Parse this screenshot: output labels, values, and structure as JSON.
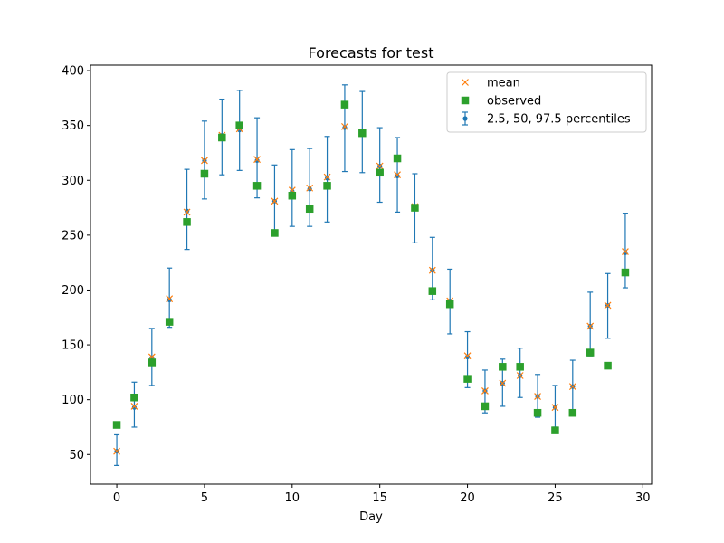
{
  "chart_data": {
    "type": "scatter",
    "title": "Forecasts for test",
    "xlabel": "Day",
    "ylabel": "",
    "xlim": [
      -1.5,
      30.5
    ],
    "ylim": [
      23,
      405
    ],
    "xticks": [
      0,
      5,
      10,
      15,
      20,
      25,
      30
    ],
    "yticks": [
      50,
      100,
      150,
      200,
      250,
      300,
      350,
      400
    ],
    "grid": false,
    "legend_position": "top-right",
    "x": [
      0,
      1,
      2,
      3,
      4,
      5,
      6,
      7,
      8,
      9,
      10,
      11,
      12,
      13,
      14,
      15,
      16,
      17,
      18,
      19,
      20,
      21,
      22,
      23,
      24,
      25,
      26,
      27,
      28,
      29
    ],
    "series": [
      {
        "name": "mean",
        "marker": "x",
        "color": "#ff7f0e",
        "values": [
          53,
          94,
          139,
          192,
          271,
          318,
          341,
          347,
          319,
          281,
          291,
          293,
          303,
          349,
          343,
          313,
          305,
          276,
          218,
          190,
          140,
          108,
          115,
          122,
          103,
          93,
          112,
          167,
          186,
          235
        ]
      },
      {
        "name": "observed",
        "marker": "square",
        "color": "#2ca02c",
        "values": [
          77,
          102,
          134,
          171,
          262,
          306,
          339,
          350,
          295,
          252,
          286,
          274,
          295,
          369,
          343,
          307,
          320,
          275,
          199,
          187,
          119,
          94,
          130,
          130,
          88,
          72,
          88,
          143,
          131,
          216
        ]
      },
      {
        "name": "2.5, 50, 97.5 percentiles",
        "marker": "point-errorbar",
        "color": "#1f77b4",
        "median": [
          53,
          93,
          138,
          191,
          272,
          318,
          341,
          346,
          318,
          281,
          290,
          292,
          302,
          348,
          343,
          313,
          304,
          275,
          218,
          190,
          139,
          108,
          115,
          122,
          103,
          93,
          112,
          167,
          186,
          234
        ],
        "lower": [
          40,
          75,
          113,
          166,
          237,
          283,
          305,
          309,
          284,
          252,
          258,
          258,
          262,
          308,
          307,
          280,
          271,
          243,
          191,
          160,
          111,
          88,
          94,
          102,
          84,
          75,
          88,
          140,
          156,
          202
        ],
        "upper": [
          68,
          116,
          165,
          220,
          310,
          354,
          374,
          382,
          357,
          314,
          328,
          329,
          340,
          387,
          381,
          348,
          339,
          306,
          248,
          219,
          162,
          127,
          137,
          147,
          123,
          113,
          136,
          198,
          215,
          270
        ]
      }
    ]
  }
}
